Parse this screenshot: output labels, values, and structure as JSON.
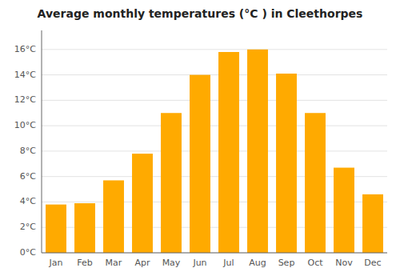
{
  "chart_data": {
    "type": "bar",
    "title": "Average monthly temperatures (°C ) in Cleethorpes",
    "categories": [
      "Jan",
      "Feb",
      "Mar",
      "Apr",
      "May",
      "Jun",
      "Jul",
      "Aug",
      "Sep",
      "Oct",
      "Nov",
      "Dec"
    ],
    "values": [
      3.8,
      3.9,
      5.7,
      7.8,
      11.0,
      14.0,
      15.8,
      16.0,
      14.1,
      11.0,
      6.7,
      4.6
    ],
    "color": "#FFAA00",
    "ylim": [
      0,
      17.5
    ],
    "yticks": [
      {
        "value": 0,
        "label": "0°C"
      },
      {
        "value": 2,
        "label": "2°C"
      },
      {
        "value": 4,
        "label": "4°C"
      },
      {
        "value": 6,
        "label": "6°C"
      },
      {
        "value": 8,
        "label": "8°C"
      },
      {
        "value": 10,
        "label": "10°C"
      },
      {
        "value": 12,
        "label": "12°C"
      },
      {
        "value": 14,
        "label": "14°C"
      },
      {
        "value": 16,
        "label": "16°C"
      }
    ],
    "grid": true
  }
}
